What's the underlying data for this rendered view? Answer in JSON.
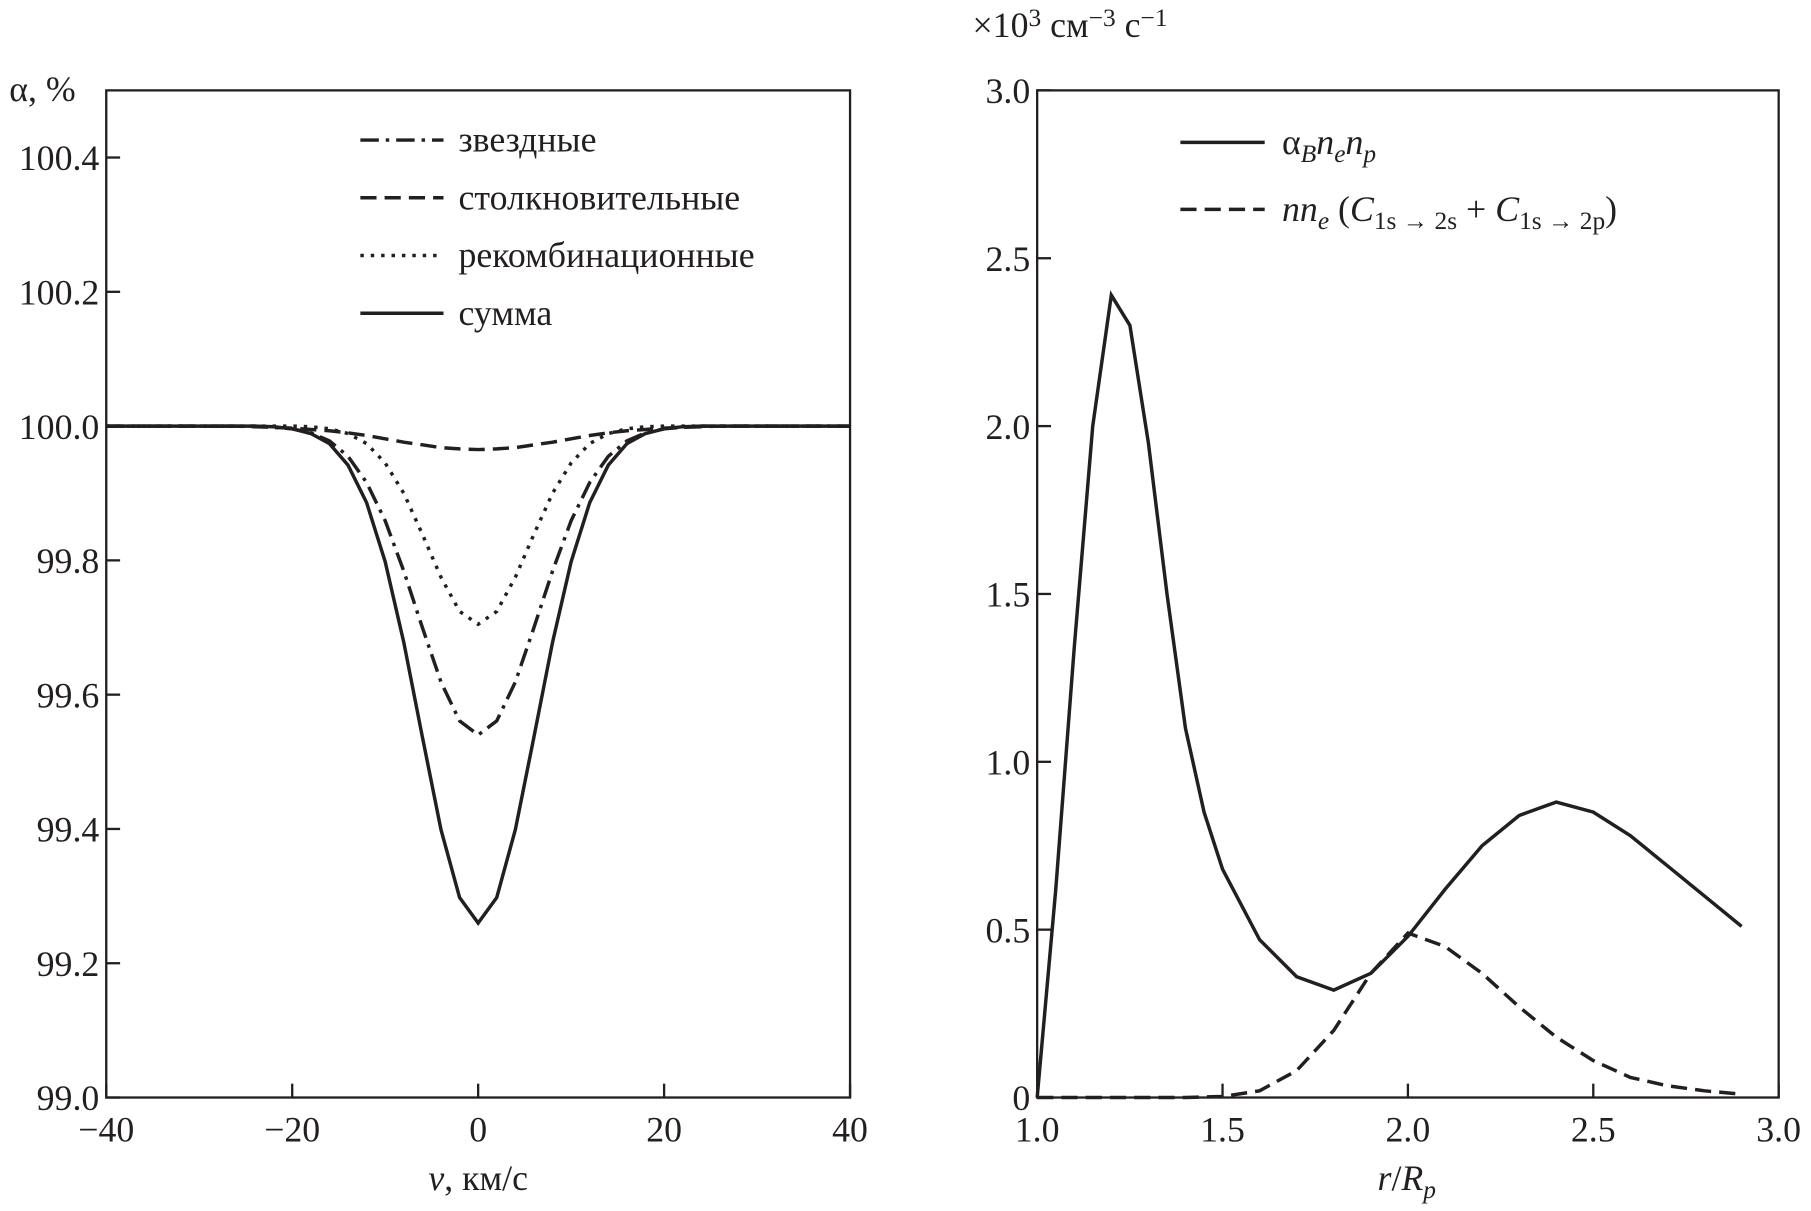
{
  "chart_data": [
    {
      "type": "line",
      "ylabel_parts": [
        {
          "t": "α, %"
        }
      ],
      "xlabel_parts": [
        {
          "t": "v",
          "i": true
        },
        {
          "t": ", км/с"
        }
      ],
      "xlim": [
        -40,
        40
      ],
      "ylim": [
        99.0,
        100.5
      ],
      "xticks": [
        -40,
        -20,
        0,
        20,
        40
      ],
      "xtick_labels": [
        "−40",
        "−20",
        "0",
        "20",
        "40"
      ],
      "yticks": [
        99.0,
        99.2,
        99.4,
        99.6,
        99.8,
        100.0,
        100.2,
        100.4
      ],
      "ytick_labels": [
        "99.0",
        "99.2",
        "99.4",
        "99.6",
        "99.8",
        "100.0",
        "100.2",
        "100.4"
      ],
      "grid": false,
      "legend_position": "top-right",
      "x": [
        -40,
        -38,
        -36,
        -34,
        -32,
        -30,
        -28,
        -26,
        -24,
        -22,
        -20,
        -18,
        -16,
        -14,
        -12,
        -10,
        -8,
        -6,
        -4,
        -2,
        0,
        2,
        4,
        6,
        8,
        10,
        12,
        14,
        16,
        18,
        20,
        22,
        24,
        26,
        28,
        30,
        32,
        34,
        36,
        38,
        40
      ],
      "series": [
        {
          "name": "звездные",
          "style": "dashdot",
          "values": [
            100,
            100,
            100,
            100,
            100,
            100,
            100,
            100,
            100,
            99.998,
            99.996,
            99.99,
            99.978,
            99.955,
            99.916,
            99.859,
            99.784,
            99.7,
            99.619,
            99.561,
            99.54,
            99.561,
            99.619,
            99.7,
            99.784,
            99.859,
            99.916,
            99.955,
            99.978,
            99.99,
            99.996,
            99.998,
            100,
            100,
            100,
            100,
            100,
            100,
            100,
            100,
            100
          ]
        },
        {
          "name": "столкновительные",
          "style": "dashed",
          "values": [
            100,
            100,
            100,
            100,
            100,
            100,
            100,
            100,
            99.999,
            99.998,
            99.997,
            99.995,
            99.993,
            99.99,
            99.986,
            99.981,
            99.976,
            99.972,
            99.968,
            99.966,
            99.965,
            99.966,
            99.968,
            99.972,
            99.976,
            99.981,
            99.986,
            99.99,
            99.993,
            99.995,
            99.997,
            99.998,
            99.999,
            100,
            100,
            100,
            100,
            100,
            100,
            100,
            100
          ]
        },
        {
          "name": "рекомбинационные",
          "style": "dotted",
          "values": [
            100,
            100,
            100,
            100,
            100,
            100,
            100,
            100,
            100,
            100,
            100,
            99.999,
            99.996,
            99.989,
            99.974,
            99.945,
            99.9,
            99.839,
            99.775,
            99.724,
            99.705,
            99.724,
            99.775,
            99.839,
            99.9,
            99.945,
            99.974,
            99.989,
            99.996,
            99.999,
            100,
            100,
            100,
            100,
            100,
            100,
            100,
            100,
            100,
            100,
            100
          ]
        },
        {
          "name": "сумма",
          "style": "solid",
          "values": [
            100,
            100,
            100,
            100,
            100,
            100,
            100,
            100,
            100,
            99.999,
            99.996,
            99.989,
            99.974,
            99.942,
            99.886,
            99.798,
            99.678,
            99.537,
            99.399,
            99.298,
            99.26,
            99.298,
            99.399,
            99.537,
            99.678,
            99.798,
            99.886,
            99.942,
            99.974,
            99.989,
            99.996,
            99.999,
            100,
            100,
            100,
            100,
            100,
            100,
            100,
            100,
            100
          ]
        }
      ]
    },
    {
      "type": "line",
      "ylabel_parts": [
        {
          "t": "×10"
        },
        {
          "t": "3",
          "sup": true
        },
        {
          "t": " см"
        },
        {
          "t": "−3",
          "sup": true
        },
        {
          "t": " с"
        },
        {
          "t": "−1",
          "sup": true
        }
      ],
      "xlabel_parts": [
        {
          "t": "r",
          "i": true
        },
        {
          "t": "/"
        },
        {
          "t": "R",
          "i": true
        },
        {
          "t": "p",
          "i": true,
          "sub": true
        }
      ],
      "xlim": [
        1.0,
        3.0
      ],
      "ylim": [
        0,
        3.0
      ],
      "xticks": [
        1.0,
        1.5,
        2.0,
        2.5,
        3.0
      ],
      "xtick_labels": [
        "1.0",
        "1.5",
        "2.0",
        "2.5",
        "3.0"
      ],
      "yticks": [
        0,
        0.5,
        1.0,
        1.5,
        2.0,
        2.5,
        3.0
      ],
      "ytick_labels": [
        "0",
        "0.5",
        "1.0",
        "1.5",
        "2.0",
        "2.5",
        "3.0"
      ],
      "grid": false,
      "legend_position": "top-right",
      "series": [
        {
          "name": "αBnenp",
          "style": "solid",
          "name_parts": [
            {
              "t": "α"
            },
            {
              "t": "B",
              "i": true,
              "sub": true
            },
            {
              "t": "n",
              "i": true
            },
            {
              "t": "e",
              "i": true,
              "sub": true
            },
            {
              "t": "n",
              "i": true
            },
            {
              "t": "p",
              "i": true,
              "sub": true
            }
          ],
          "x": [
            1.0,
            1.05,
            1.1,
            1.15,
            1.2,
            1.25,
            1.3,
            1.35,
            1.4,
            1.45,
            1.5,
            1.6,
            1.7,
            1.8,
            1.9,
            2.0,
            2.1,
            2.2,
            2.3,
            2.4,
            2.5,
            2.6,
            2.7,
            2.8,
            2.9
          ],
          "values": [
            0,
            0.62,
            1.34,
            2.0,
            2.39,
            2.3,
            1.95,
            1.5,
            1.1,
            0.85,
            0.68,
            0.47,
            0.36,
            0.32,
            0.37,
            0.48,
            0.62,
            0.75,
            0.84,
            0.88,
            0.85,
            0.78,
            0.69,
            0.6,
            0.51
          ]
        },
        {
          "name": "nne (C1s→2s + C1s→2p)",
          "style": "dashed",
          "name_parts": [
            {
              "t": "nn",
              "i": true
            },
            {
              "t": "e",
              "i": true,
              "sub": true
            },
            {
              "t": " ("
            },
            {
              "t": "C",
              "i": true
            },
            {
              "t": "1s → 2s",
              "sub": true
            },
            {
              "t": " + "
            },
            {
              "t": "C",
              "i": true
            },
            {
              "t": "1s → 2p",
              "sub": true
            },
            {
              "t": ")"
            }
          ],
          "x": [
            1.0,
            1.1,
            1.2,
            1.3,
            1.4,
            1.5,
            1.6,
            1.7,
            1.8,
            1.9,
            2.0,
            2.1,
            2.2,
            2.3,
            2.4,
            2.5,
            2.6,
            2.7,
            2.8,
            2.9
          ],
          "values": [
            0,
            0,
            0,
            0,
            0,
            0.003,
            0.02,
            0.08,
            0.2,
            0.37,
            0.49,
            0.45,
            0.37,
            0.27,
            0.18,
            0.11,
            0.06,
            0.035,
            0.02,
            0.01
          ]
        }
      ]
    }
  ]
}
